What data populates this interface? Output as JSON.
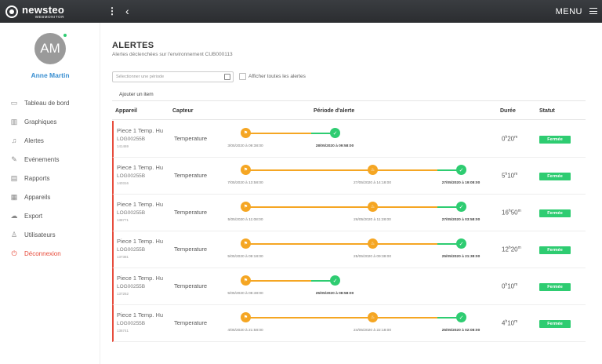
{
  "app": {
    "logo_name": "newsteo",
    "logo_sub": "WEBMONITOR",
    "menu_label": "MENU"
  },
  "user": {
    "initials": "AM",
    "name": "Anne Martin"
  },
  "nav": [
    {
      "label": "Tableau de bord",
      "icon": "monitor-icon"
    },
    {
      "label": "Graphiques",
      "icon": "bar-chart-icon"
    },
    {
      "label": "Alertes",
      "icon": "bell-icon"
    },
    {
      "label": "Evénements",
      "icon": "pencil-icon"
    },
    {
      "label": "Rapports",
      "icon": "document-icon"
    },
    {
      "label": "Appareils",
      "icon": "grid-icon"
    },
    {
      "label": "Export",
      "icon": "cloud-upload-icon"
    },
    {
      "label": "Utilisateurs",
      "icon": "users-icon"
    },
    {
      "label": "Déconnexion",
      "icon": "power-icon"
    }
  ],
  "page": {
    "title": "ALERTES",
    "subtitle": "Alertes déclenchées sur l'environnement CUB000113",
    "period_placeholder": "Sélectionner une période",
    "show_all_label": "Afficher toutes les alertes",
    "add_item": "Ajouter un item"
  },
  "table": {
    "headers": {
      "device": "Appareil",
      "sensor": "Capteur",
      "period": "Période d'alerte",
      "duration": "Durée",
      "status": "Statut"
    },
    "rows": [
      {
        "name": "Piece 1 Temp. Hu",
        "log": "LOG00255B",
        "id": "141469",
        "sensor": "Temperature",
        "start": "3/05/2020 à 09:38:00",
        "mid": "",
        "end": "28/05/2020 à 09:58:00",
        "dur_a": "0",
        "u_a": "h",
        "dur_b": "20",
        "u_b": "m",
        "status": "Fermée"
      },
      {
        "name": "Piece 1 Temp. Hu",
        "log": "LOG00255B",
        "id": "140316",
        "sensor": "Temperature",
        "start": "7/05/2020 à 13:58:00",
        "mid": "27/05/2020 à 14:18:00",
        "end": "27/05/2020 à 19:08:00",
        "dur_a": "5",
        "u_a": "h",
        "dur_b": "10",
        "u_b": "m",
        "status": "Fermée"
      },
      {
        "name": "Piece 1 Temp. Hu",
        "log": "LOG00255B",
        "id": "138771",
        "sensor": "Temperature",
        "start": "5/05/2020 à 11:08:00",
        "mid": "26/05/2020 à 11:28:00",
        "end": "27/05/2020 à 03:58:00",
        "dur_a": "16",
        "u_a": "h",
        "dur_b": "50",
        "u_b": "m",
        "status": "Fermée"
      },
      {
        "name": "Piece 1 Temp. Hu",
        "log": "LOG00255B",
        "id": "137381",
        "sensor": "Temperature",
        "start": "5/05/2020 à 09:18:00",
        "mid": "25/05/2020 à 09:38:00",
        "end": "25/05/2020 à 21:38:00",
        "dur_a": "12",
        "u_a": "h",
        "dur_b": "20",
        "u_b": "m",
        "status": "Fermée"
      },
      {
        "name": "Piece 1 Temp. Hu",
        "log": "LOG00255B",
        "id": "137252",
        "sensor": "Temperature",
        "start": "5/05/2020 à 08:48:00",
        "mid": "",
        "end": "25/05/2020 à 08:58:00",
        "dur_a": "0",
        "u_a": "h",
        "dur_b": "10",
        "u_b": "m",
        "status": "Fermée"
      },
      {
        "name": "Piece 1 Temp. Hu",
        "log": "LOG00255B",
        "id": "136741",
        "sensor": "Temperature",
        "start": "4/05/2020 à 21:58:00",
        "mid": "24/05/2020 à 22:18:00",
        "end": "25/05/2020 à 02:08:00",
        "dur_a": "4",
        "u_a": "h",
        "dur_b": "10",
        "u_b": "m",
        "status": "Fermée"
      }
    ]
  },
  "colors": {
    "orange": "#f5a623",
    "green": "#2ecc71",
    "red": "#e74c3c",
    "blue": "#3a8fd1"
  }
}
